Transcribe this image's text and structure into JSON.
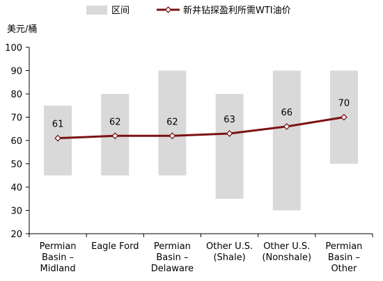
{
  "chart_data": {
    "type": "bar",
    "ylabel": "美元/桶",
    "ylim": [
      20,
      100
    ],
    "yticks": [
      20,
      30,
      40,
      50,
      60,
      70,
      80,
      90,
      100
    ],
    "grid": false,
    "legend_position": "top",
    "categories": [
      [
        "Permian",
        "Basin –",
        "Midland"
      ],
      [
        "Eagle Ford"
      ],
      [
        "Permian",
        "Basin –",
        "Delaware"
      ],
      [
        "Other U.S.",
        "(Shale)"
      ],
      [
        "Other U.S.",
        "(Nonshale)"
      ],
      [
        "Permian",
        "Basin –",
        "Other"
      ]
    ],
    "series": [
      {
        "name": "区间",
        "kind": "range",
        "low": [
          45,
          45,
          45,
          35,
          30,
          50
        ],
        "high": [
          75,
          80,
          90,
          80,
          90,
          90
        ],
        "color": "#d9d9d9"
      },
      {
        "name": "新井钻探盈利所需WTI油价",
        "kind": "line",
        "values": [
          61,
          62,
          62,
          63,
          66,
          70
        ],
        "labels": [
          "61",
          "62",
          "62",
          "63",
          "66",
          "70"
        ],
        "color": "#7b1113"
      }
    ]
  }
}
